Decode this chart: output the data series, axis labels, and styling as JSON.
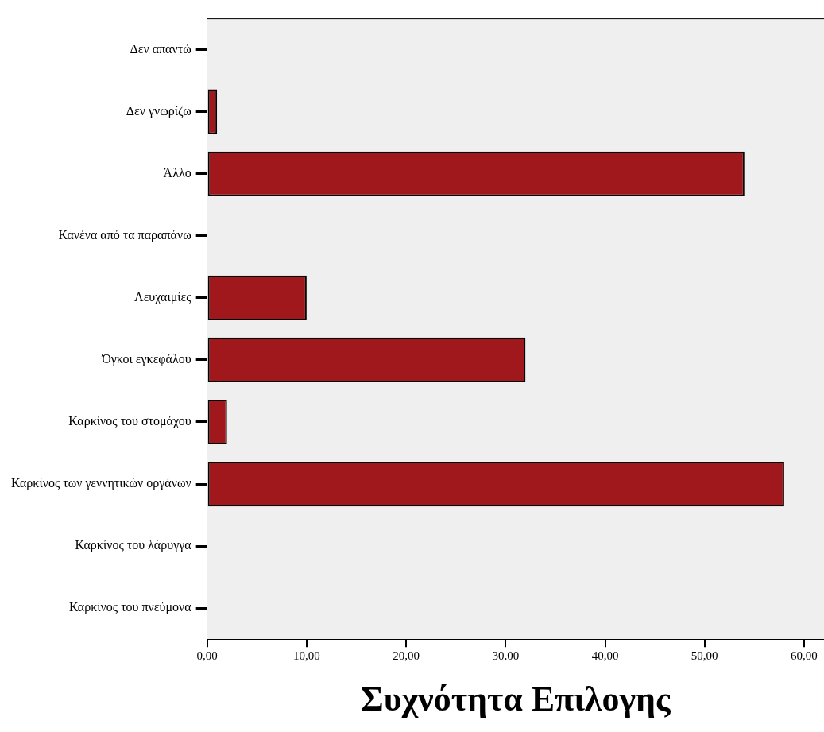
{
  "chart_data": {
    "type": "bar",
    "orientation": "horizontal",
    "xlabel": "Συχνότητα Επιλογης",
    "categories": [
      "Δεν απαντώ",
      "Δεν γνωρίζω",
      "Άλλο",
      "Κανένα από τα παραπάνω",
      "Λευχαιμίες",
      "Όγκοι εγκεφάλου",
      "Καρκίνος του στομάχου",
      "Καρκίνος των γεννητικών οργάνων",
      "Καρκίνος του λάρυγγα",
      "Καρκίνος του πνεύμονα"
    ],
    "values": [
      0,
      1,
      54,
      0,
      10,
      32,
      2,
      58,
      0,
      0
    ],
    "color": "#a0171c",
    "xlim": [
      0,
      62
    ],
    "xticks": [
      {
        "value": 0,
        "label": "0,00"
      },
      {
        "value": 10,
        "label": "10,00"
      },
      {
        "value": 20,
        "label": "20,00"
      },
      {
        "value": 30,
        "label": "30,00"
      },
      {
        "value": 40,
        "label": "40,00"
      },
      {
        "value": 50,
        "label": "50,00"
      },
      {
        "value": 60,
        "label": "60,00"
      }
    ],
    "grid": false,
    "legend": false
  }
}
